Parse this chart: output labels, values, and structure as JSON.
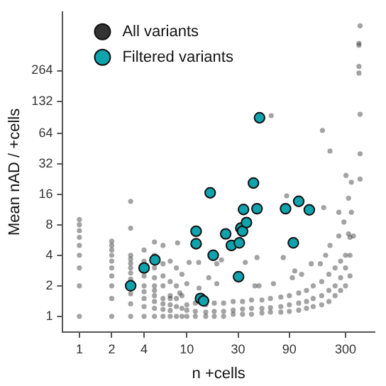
{
  "chart_data": {
    "type": "scatter",
    "xlabel": "n +cells",
    "ylabel": "Mean nAD / +cells",
    "log": "xy",
    "grid": false,
    "legend": "top left",
    "marker": "circle",
    "xlim": [
      0.73,
      560
    ],
    "xticks": [
      1,
      2,
      4,
      10,
      30,
      90,
      300
    ],
    "ylim": [
      0.73,
      1000
    ],
    "yticks": [
      1,
      2,
      4,
      8,
      16,
      32,
      64,
      132,
      264
    ],
    "series": [
      {
        "name": "All variants",
        "color": "#333333",
        "x": [
          1,
          1,
          1,
          1,
          1,
          1,
          1,
          1,
          1,
          2,
          2,
          2,
          2,
          2,
          2,
          2,
          2,
          2,
          2,
          3,
          3,
          3,
          3,
          3,
          3,
          3,
          3,
          3,
          3,
          3,
          4,
          4,
          4,
          4,
          4,
          4,
          4,
          4,
          5,
          5,
          5,
          5,
          5,
          5,
          5,
          5,
          5,
          5,
          6,
          6,
          6,
          6,
          6,
          6,
          6,
          6,
          7,
          7,
          7,
          7,
          7,
          7,
          8,
          8,
          8,
          8,
          8,
          9,
          9,
          9,
          9,
          10,
          10,
          10,
          12,
          12,
          12,
          15,
          15,
          15,
          18,
          18,
          18,
          22,
          22,
          22,
          27,
          27,
          27,
          33,
          33,
          33,
          40,
          40,
          40,
          50,
          50,
          50,
          60,
          60,
          60,
          75,
          75,
          75,
          90,
          90,
          90,
          110,
          110,
          110,
          130,
          130,
          130,
          150,
          150,
          150,
          180,
          180,
          180,
          210,
          210,
          210,
          240,
          240,
          240,
          270,
          270,
          270,
          300,
          300,
          300,
          330,
          330,
          330,
          61,
          183,
          215,
          410,
          400,
          400,
          400,
          400,
          410,
          410,
          410,
          303,
          340,
          320,
          188,
          260,
          85,
          8.2,
          10.5,
          12.9,
          19,
          21,
          35,
          45,
          43,
          47,
          79,
          101,
          117,
          144,
          215,
          196,
          260,
          290,
          320,
          355,
          340,
          175,
          96,
          64,
          19,
          16,
          13,
          10,
          8.6,
          7
        ],
        "values": [
          1,
          2,
          3,
          4,
          5,
          6,
          7,
          8,
          9,
          1,
          1.5,
          2,
          2.5,
          3,
          3.5,
          4,
          4.5,
          5,
          5.5,
          1,
          1.33,
          1.67,
          2.33,
          2.67,
          3,
          3.33,
          3.67,
          4,
          7.4,
          13.6,
          1,
          1.25,
          1.5,
          1.75,
          2,
          2.5,
          3.5,
          4.5,
          1,
          1.2,
          1.4,
          1.6,
          1.8,
          2,
          2.4,
          3,
          4,
          5.4,
          1,
          1.17,
          1.33,
          1.5,
          2,
          2.5,
          3.3,
          5,
          1,
          1.14,
          1.3,
          1.6,
          2.2,
          3.5,
          1,
          1.25,
          1.5,
          2,
          3,
          1,
          1.2,
          1.6,
          2.6,
          1,
          1.15,
          1.3,
          1,
          1.12,
          1.35,
          1,
          1.1,
          1.3,
          1,
          1.12,
          1.35,
          1,
          1.12,
          1.35,
          1.05,
          1.15,
          1.4,
          1.05,
          1.18,
          1.4,
          1.05,
          1.2,
          1.45,
          1.08,
          1.2,
          1.45,
          1.1,
          1.22,
          1.5,
          1.1,
          1.25,
          1.55,
          1.12,
          1.3,
          1.6,
          1.15,
          1.35,
          1.7,
          1.2,
          1.4,
          1.8,
          1.25,
          1.5,
          2,
          1.3,
          1.6,
          2.2,
          1.4,
          1.8,
          2.6,
          1.6,
          2,
          3,
          1.8,
          2.4,
          3.5,
          2,
          3,
          4,
          2.5,
          4,
          6,
          95,
          68,
          42.5,
          730,
          490,
          470,
          290,
          250,
          98,
          40,
          22.5,
          24.5,
          21,
          14.6,
          11.8,
          10.6,
          15.4,
          5.3,
          3.4,
          3.4,
          3.3,
          3.6,
          3.4,
          3.8,
          2,
          2,
          3.8,
          2.8,
          2.6,
          3.3,
          5,
          4,
          6.2,
          8.5,
          6.5,
          6.2,
          10.6,
          3.3,
          2.4,
          2.1,
          2.1,
          2.4,
          1.9,
          2.1,
          1.7,
          1.5
        ]
      },
      {
        "name": "Filtered variants",
        "color": "#0fa3ad",
        "x": [
          3,
          4,
          5.05,
          12.2,
          12.2,
          16.5,
          17.6,
          13.4,
          14.3,
          23,
          26,
          30.8,
          30.3,
          31.8,
          33,
          35.9,
          33.7,
          45,
          41.7,
          47.5,
          83,
          110,
          138,
          98
        ],
        "values": [
          2,
          3,
          3.6,
          6.9,
          5.2,
          16.5,
          4,
          1.5,
          1.42,
          6.5,
          5,
          5.3,
          2.46,
          7.4,
          6.9,
          8.4,
          11.3,
          11.5,
          20.6,
          90.6,
          11.5,
          13.6,
          11.2,
          5.3
        ]
      }
    ]
  }
}
